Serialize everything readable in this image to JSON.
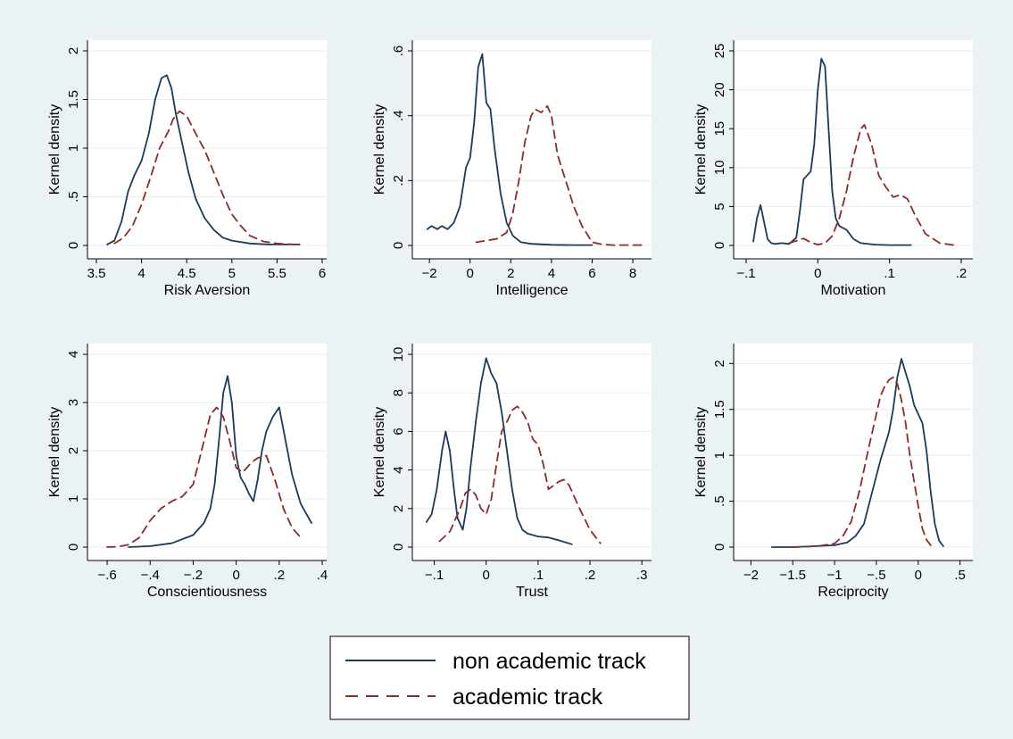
{
  "colors": {
    "background": "#eaf2f3",
    "plot_background": "#ffffff",
    "non_academic": "#1a3a5c",
    "academic": "#8b2a2a"
  },
  "legend": {
    "placement": "bottom-center",
    "items": [
      {
        "label": "non academic track",
        "style": "solid"
      },
      {
        "label": "academic track",
        "style": "dashed"
      }
    ]
  },
  "chart_data": [
    {
      "type": "line",
      "xlabel": "Risk Aversion",
      "ylabel": "Kernel density",
      "xlim": [
        3.5,
        6
      ],
      "ylim": [
        0,
        2
      ],
      "xticks": [
        3.5,
        4,
        4.5,
        5,
        5.5,
        6
      ],
      "xticklabels": [
        "3.5",
        "4",
        "4.5",
        "5",
        "5.5",
        "6"
      ],
      "yticks": [
        0,
        0.5,
        1,
        1.5,
        2
      ],
      "yticklabels": [
        "0",
        ".5",
        "1",
        "1.5",
        "2"
      ],
      "grid": true,
      "series": [
        {
          "name": "non academic track",
          "style": "solid",
          "x": [
            3.62,
            3.7,
            3.78,
            3.85,
            3.92,
            4.0,
            4.08,
            4.15,
            4.22,
            4.28,
            4.33,
            4.38,
            4.45,
            4.52,
            4.6,
            4.7,
            4.8,
            4.9,
            5.0,
            5.2,
            5.4,
            5.6,
            5.75
          ],
          "y": [
            0.01,
            0.05,
            0.25,
            0.55,
            0.72,
            0.87,
            1.15,
            1.5,
            1.72,
            1.75,
            1.62,
            1.35,
            1.05,
            0.75,
            0.48,
            0.28,
            0.16,
            0.08,
            0.05,
            0.02,
            0.01,
            0.01,
            0.01
          ]
        },
        {
          "name": "academic track",
          "style": "dashed",
          "x": [
            3.7,
            3.8,
            3.9,
            4.0,
            4.1,
            4.2,
            4.3,
            4.35,
            4.42,
            4.5,
            4.6,
            4.7,
            4.8,
            4.9,
            5.0,
            5.1,
            5.2,
            5.35,
            5.5,
            5.7
          ],
          "y": [
            0.02,
            0.08,
            0.2,
            0.42,
            0.7,
            1.0,
            1.18,
            1.3,
            1.38,
            1.33,
            1.15,
            0.98,
            0.75,
            0.52,
            0.32,
            0.2,
            0.1,
            0.04,
            0.02,
            0.01
          ]
        }
      ]
    },
    {
      "type": "line",
      "xlabel": "Intelligence",
      "ylabel": "Kernel density",
      "xlim": [
        -2.4,
        8.7
      ],
      "ylim": [
        0,
        0.6
      ],
      "xticks": [
        -2,
        0,
        2,
        4,
        6,
        8
      ],
      "xticklabels": [
        "−2",
        "0",
        "2",
        "4",
        "6",
        "8"
      ],
      "yticks": [
        0,
        0.2,
        0.4,
        0.6
      ],
      "yticklabels": [
        "0",
        ".2",
        ".4",
        ".6"
      ],
      "grid": true,
      "series": [
        {
          "name": "non academic track",
          "style": "solid",
          "x": [
            -2.1,
            -1.9,
            -1.6,
            -1.4,
            -1.1,
            -0.8,
            -0.5,
            -0.2,
            0.0,
            0.2,
            0.4,
            0.6,
            0.8,
            1.0,
            1.2,
            1.5,
            1.8,
            2.1,
            2.5,
            3.0,
            4.0,
            5.0,
            6.0
          ],
          "y": [
            0.05,
            0.06,
            0.05,
            0.06,
            0.05,
            0.07,
            0.12,
            0.24,
            0.27,
            0.38,
            0.55,
            0.59,
            0.44,
            0.42,
            0.3,
            0.16,
            0.07,
            0.03,
            0.01,
            0.005,
            0.002,
            0.001,
            0.001
          ]
        },
        {
          "name": "academic track",
          "style": "dashed",
          "x": [
            0.3,
            0.8,
            1.3,
            1.8,
            2.1,
            2.4,
            2.7,
            3.0,
            3.2,
            3.5,
            3.8,
            4.0,
            4.3,
            4.7,
            5.1,
            5.5,
            6.0,
            6.5,
            7.0,
            8.0,
            8.5
          ],
          "y": [
            0.01,
            0.015,
            0.02,
            0.04,
            0.1,
            0.2,
            0.32,
            0.4,
            0.42,
            0.41,
            0.43,
            0.4,
            0.28,
            0.2,
            0.12,
            0.06,
            0.01,
            0.003,
            0.001,
            0.001,
            0.001
          ]
        }
      ]
    },
    {
      "type": "line",
      "xlabel": "Motivation",
      "ylabel": "Kernel density",
      "xlim": [
        -0.105,
        0.21
      ],
      "ylim": [
        0,
        25
      ],
      "xticks": [
        -0.1,
        0,
        0.1,
        0.2
      ],
      "xticklabels": [
        "−.1",
        "0",
        ".1",
        ".2"
      ],
      "yticks": [
        0,
        5,
        10,
        15,
        20,
        25
      ],
      "yticklabels": [
        "0",
        "5",
        "10",
        "15",
        "20",
        "25"
      ],
      "grid": true,
      "series": [
        {
          "name": "non academic track",
          "style": "solid",
          "x": [
            -0.09,
            -0.085,
            -0.08,
            -0.075,
            -0.07,
            -0.065,
            -0.06,
            -0.05,
            -0.04,
            -0.03,
            -0.025,
            -0.02,
            -0.01,
            -0.005,
            0.0,
            0.005,
            0.01,
            0.015,
            0.02,
            0.025,
            0.03,
            0.04,
            0.05,
            0.06,
            0.08,
            0.1,
            0.13
          ],
          "y": [
            0.5,
            3.5,
            5.2,
            3.0,
            0.8,
            0.3,
            0.2,
            0.3,
            0.2,
            1.0,
            4.5,
            8.5,
            9.5,
            13.0,
            20.0,
            24.0,
            23.0,
            15.0,
            7.0,
            3.5,
            2.5,
            2.0,
            0.8,
            0.3,
            0.1,
            0.05,
            0.05
          ]
        },
        {
          "name": "academic track",
          "style": "dashed",
          "x": [
            -0.04,
            -0.03,
            -0.02,
            -0.01,
            0.0,
            0.01,
            0.02,
            0.03,
            0.04,
            0.05,
            0.06,
            0.065,
            0.075,
            0.085,
            0.095,
            0.105,
            0.115,
            0.125,
            0.135,
            0.15,
            0.17,
            0.19
          ],
          "y": [
            0.3,
            0.6,
            0.9,
            0.4,
            0.1,
            0.3,
            1.2,
            3.5,
            7.0,
            11.5,
            15.0,
            15.5,
            13.0,
            9.0,
            7.5,
            6.2,
            6.5,
            6.0,
            4.0,
            1.5,
            0.3,
            0.05
          ]
        }
      ]
    },
    {
      "type": "line",
      "xlabel": "Conscientiousness",
      "ylabel": "Kernel density",
      "xlim": [
        -0.65,
        0.4
      ],
      "ylim": [
        0,
        4
      ],
      "xticks": [
        -0.6,
        -0.4,
        -0.2,
        0,
        0.2,
        0.4
      ],
      "xticklabels": [
        "−.6",
        "−.4",
        "−.2",
        "0",
        ".2",
        ".4"
      ],
      "yticks": [
        0,
        1,
        2,
        3,
        4
      ],
      "yticklabels": [
        "0",
        "1",
        "2",
        "3",
        "4"
      ],
      "grid": true,
      "series": [
        {
          "name": "non academic track",
          "style": "solid",
          "x": [
            -0.5,
            -0.4,
            -0.3,
            -0.2,
            -0.15,
            -0.12,
            -0.1,
            -0.08,
            -0.06,
            -0.04,
            -0.02,
            0.0,
            0.02,
            0.04,
            0.06,
            0.08,
            0.1,
            0.12,
            0.14,
            0.17,
            0.2,
            0.23,
            0.26,
            0.3,
            0.35
          ],
          "y": [
            0.0,
            0.02,
            0.08,
            0.25,
            0.5,
            0.8,
            1.3,
            2.2,
            3.2,
            3.55,
            3.0,
            1.9,
            1.45,
            1.3,
            1.1,
            0.95,
            1.4,
            2.0,
            2.4,
            2.7,
            2.9,
            2.2,
            1.5,
            0.9,
            0.5
          ]
        },
        {
          "name": "academic track",
          "style": "dashed",
          "x": [
            -0.6,
            -0.55,
            -0.5,
            -0.45,
            -0.4,
            -0.35,
            -0.3,
            -0.25,
            -0.2,
            -0.15,
            -0.12,
            -0.09,
            -0.06,
            -0.03,
            0.0,
            0.03,
            0.07,
            0.1,
            0.14,
            0.18,
            0.22,
            0.26,
            0.3
          ],
          "y": [
            0.0,
            0.01,
            0.05,
            0.2,
            0.55,
            0.8,
            0.95,
            1.05,
            1.3,
            2.2,
            2.75,
            2.9,
            2.7,
            2.2,
            1.65,
            1.55,
            1.75,
            1.85,
            1.9,
            1.4,
            0.8,
            0.4,
            0.2
          ]
        }
      ]
    },
    {
      "type": "line",
      "xlabel": "Trust",
      "ylabel": "Kernel density",
      "xlim": [
        -0.125,
        0.31
      ],
      "ylim": [
        0,
        10
      ],
      "xticks": [
        -0.1,
        0,
        0.1,
        0.2,
        0.3
      ],
      "xticklabels": [
        "−.1",
        "0",
        ".1",
        ".2",
        ".3"
      ],
      "yticks": [
        0,
        2,
        4,
        6,
        8,
        10
      ],
      "yticklabels": [
        "0",
        "2",
        "4",
        "6",
        "8",
        "10"
      ],
      "grid": true,
      "series": [
        {
          "name": "non academic track",
          "style": "solid",
          "x": [
            -0.115,
            -0.105,
            -0.095,
            -0.085,
            -0.078,
            -0.07,
            -0.062,
            -0.055,
            -0.045,
            -0.038,
            -0.03,
            -0.02,
            -0.01,
            0.0,
            0.01,
            0.02,
            0.03,
            0.04,
            0.05,
            0.06,
            0.07,
            0.08,
            0.1,
            0.12,
            0.14,
            0.165
          ],
          "y": [
            1.3,
            1.7,
            3.0,
            5.0,
            6.0,
            5.0,
            3.0,
            1.5,
            0.9,
            2.0,
            4.2,
            6.5,
            8.5,
            9.8,
            9.0,
            8.5,
            7.0,
            5.0,
            3.0,
            1.5,
            0.9,
            0.7,
            0.55,
            0.5,
            0.35,
            0.15
          ]
        },
        {
          "name": "academic track",
          "style": "dashed",
          "x": [
            -0.09,
            -0.07,
            -0.05,
            -0.04,
            -0.03,
            -0.02,
            -0.01,
            0.0,
            0.01,
            0.02,
            0.03,
            0.04,
            0.05,
            0.06,
            0.07,
            0.08,
            0.09,
            0.1,
            0.11,
            0.12,
            0.13,
            0.14,
            0.15,
            0.16,
            0.18,
            0.2,
            0.22
          ],
          "y": [
            0.3,
            0.8,
            2.0,
            2.8,
            3.0,
            2.7,
            2.0,
            1.7,
            2.5,
            4.3,
            6.0,
            6.5,
            7.1,
            7.3,
            7.0,
            6.5,
            5.6,
            5.3,
            4.3,
            3.0,
            3.2,
            3.4,
            3.5,
            3.2,
            2.0,
            0.9,
            0.2
          ]
        }
      ]
    },
    {
      "type": "line",
      "xlabel": "Reciprocity",
      "ylabel": "Kernel density",
      "xlim": [
        -2.1,
        0.6
      ],
      "ylim": [
        0,
        2.1
      ],
      "xticks": [
        -2,
        -1.5,
        -1,
        -0.5,
        0,
        0.5
      ],
      "xticklabels": [
        "−2",
        "−1.5",
        "−1",
        "−.5",
        "0",
        ".5"
      ],
      "yticks": [
        0,
        0.5,
        1,
        1.5,
        2
      ],
      "yticklabels": [
        "0",
        ".5",
        "1",
        "1.5",
        "2"
      ],
      "grid": true,
      "series": [
        {
          "name": "non academic track",
          "style": "solid",
          "x": [
            -1.75,
            -1.5,
            -1.25,
            -1.0,
            -0.85,
            -0.75,
            -0.65,
            -0.55,
            -0.45,
            -0.35,
            -0.3,
            -0.25,
            -0.2,
            -0.15,
            -0.1,
            -0.05,
            0.0,
            0.05,
            0.1,
            0.15,
            0.2,
            0.25,
            0.3
          ],
          "y": [
            0.0,
            0.0,
            0.01,
            0.02,
            0.05,
            0.12,
            0.25,
            0.6,
            0.95,
            1.25,
            1.5,
            1.85,
            2.05,
            1.9,
            1.75,
            1.55,
            1.45,
            1.35,
            1.05,
            0.6,
            0.25,
            0.07,
            0.01
          ]
        },
        {
          "name": "academic track",
          "style": "dashed",
          "x": [
            -1.5,
            -1.2,
            -1.0,
            -0.9,
            -0.8,
            -0.7,
            -0.6,
            -0.5,
            -0.45,
            -0.4,
            -0.35,
            -0.3,
            -0.25,
            -0.2,
            -0.15,
            -0.1,
            -0.05,
            0.0,
            0.05,
            0.1,
            0.15
          ],
          "y": [
            0.0,
            0.01,
            0.04,
            0.12,
            0.28,
            0.62,
            1.05,
            1.45,
            1.65,
            1.75,
            1.82,
            1.85,
            1.78,
            1.6,
            1.35,
            1.0,
            0.72,
            0.45,
            0.2,
            0.08,
            0.02
          ]
        }
      ]
    }
  ]
}
